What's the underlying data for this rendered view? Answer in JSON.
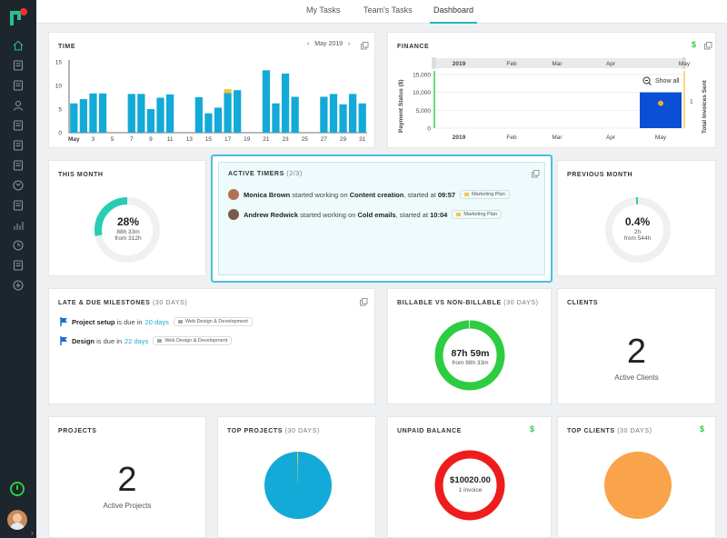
{
  "tabs": [
    {
      "label": "My Tasks"
    },
    {
      "label": "Team's Tasks"
    },
    {
      "label": "Dashboard",
      "active": true
    }
  ],
  "sidebar": {
    "items": [
      "home-icon",
      "book-icon",
      "folder-icon",
      "user-icon",
      "dollar-doc-icon",
      "dollar-doc-icon",
      "grid-icon",
      "sync-icon",
      "wallet-icon",
      "bar-chart-icon",
      "clock-icon",
      "calendar-icon",
      "plus-circle-icon"
    ],
    "accent": "#28c08c"
  },
  "time": {
    "title": "TIME",
    "month_label": "May 2019",
    "chart_data": {
      "type": "bar",
      "x_tick_labels": [
        "May",
        "3",
        "5",
        "7",
        "9",
        "11",
        "13",
        "15",
        "17",
        "19",
        "21",
        "23",
        "25",
        "27",
        "29",
        "31"
      ],
      "y_ticks": [
        "15",
        "10",
        "5",
        "0"
      ],
      "ylim": [
        0,
        15
      ],
      "days": [
        1,
        2,
        3,
        4,
        5,
        6,
        7,
        8,
        9,
        10,
        11,
        12,
        13,
        14,
        15,
        16,
        17,
        18,
        19,
        20,
        21,
        22,
        23,
        24,
        25,
        26,
        27,
        28,
        29,
        30,
        31
      ],
      "values": [
        6.2,
        7.1,
        8.3,
        8.3,
        0,
        0,
        8.2,
        8.2,
        5,
        7.4,
        8.1,
        0,
        0,
        7.5,
        4.1,
        5.3,
        8.4,
        9,
        0,
        0,
        13.2,
        6.2,
        12.5,
        7.6,
        0,
        0,
        7.6,
        8.2,
        6,
        8.2,
        6.2
      ],
      "secondary_values": [
        0,
        0,
        0,
        0,
        0,
        0,
        0,
        0,
        0,
        0,
        0,
        0,
        0,
        0,
        0,
        0,
        0.8,
        0,
        0,
        0,
        0,
        0,
        0,
        0,
        0,
        0,
        0,
        0,
        0,
        0,
        0
      ],
      "primary_color": "#13aad7",
      "secondary_color": "#f2c12e"
    }
  },
  "finance": {
    "title": "FINANCE",
    "ylabel": "Payment Status ($)",
    "y2label": "Total Invoices Sent",
    "show_all_label": "Show all",
    "chart_data": {
      "type": "bar",
      "categories": [
        "2019",
        "Feb",
        "Mar",
        "Apr",
        "May"
      ],
      "y_ticks": [
        "15,000",
        "10,000",
        "5,000",
        "0"
      ],
      "ylim": [
        0,
        15000
      ],
      "values": [
        0,
        0,
        0,
        0,
        10020
      ],
      "y2_tick": "1",
      "bar_color": "#0b4fd4",
      "point_color": "#f2a733",
      "navigator_labels": [
        "2019",
        "Feb",
        "Mar",
        "Apr",
        "May"
      ]
    }
  },
  "this_month": {
    "title": "THIS MONTH",
    "percent": "28%",
    "hours": "88h 33m",
    "from": "from 312h",
    "fraction": 0.28,
    "color": "#28cdb4"
  },
  "active_timers": {
    "title": "ACTIVE TIMERS",
    "count": "(2/3)",
    "rows": [
      {
        "name": "Monica Brown",
        "middle": "started working on",
        "task": "Content creation",
        "at_text": ", started at",
        "time": "09:57",
        "tag": "Marketing Plan"
      },
      {
        "name": "Andrew Redwick",
        "middle": "started working on",
        "task": "Cold emails",
        "at_text": ", started at",
        "time": "10:04",
        "tag": "Marketing Plan"
      }
    ]
  },
  "previous_month": {
    "title": "PREVIOUS MONTH",
    "percent": "0.4%",
    "hours": "2h",
    "from": "from 544h",
    "fraction": 0.004,
    "color": "#28cdb4"
  },
  "milestones": {
    "title": "LATE & DUE MILESTONES",
    "sub": "(30 DAYS)",
    "rows": [
      {
        "name": "Project setup",
        "mid": "is due in",
        "due": "20 days",
        "tag": "Web Design & Development"
      },
      {
        "name": "Design",
        "mid": "is due in",
        "due": "22 days",
        "tag": "Web Design & Development"
      }
    ]
  },
  "billable": {
    "title": "BILLABLE VS NON-BILLABLE",
    "sub": "(30 DAYS)",
    "value": "87h 59m",
    "from": "from 88h 33m",
    "fraction": 0.994,
    "color": "#2ecc40"
  },
  "clients": {
    "title": "CLIENTS",
    "value": "2",
    "label": "Active Clients"
  },
  "projects": {
    "title": "PROJECTS",
    "value": "2",
    "label": "Active Projects"
  },
  "top_projects": {
    "title": "TOP PROJECTS",
    "sub": "(30 DAYS)",
    "chart_data": {
      "type": "pie",
      "values": [
        99.6,
        0.4
      ],
      "colors": [
        "#13aad7",
        "#f2c12e"
      ]
    }
  },
  "unpaid": {
    "title": "UNPAID BALANCE",
    "value": "$10020.00",
    "label": "1 invoice",
    "color": "#ee1c1c"
  },
  "top_clients": {
    "title": "TOP CLIENTS",
    "sub": "(30 DAYS)",
    "chart_data": {
      "type": "pie",
      "values": [
        100
      ],
      "colors": [
        "#f9a34a"
      ]
    }
  }
}
